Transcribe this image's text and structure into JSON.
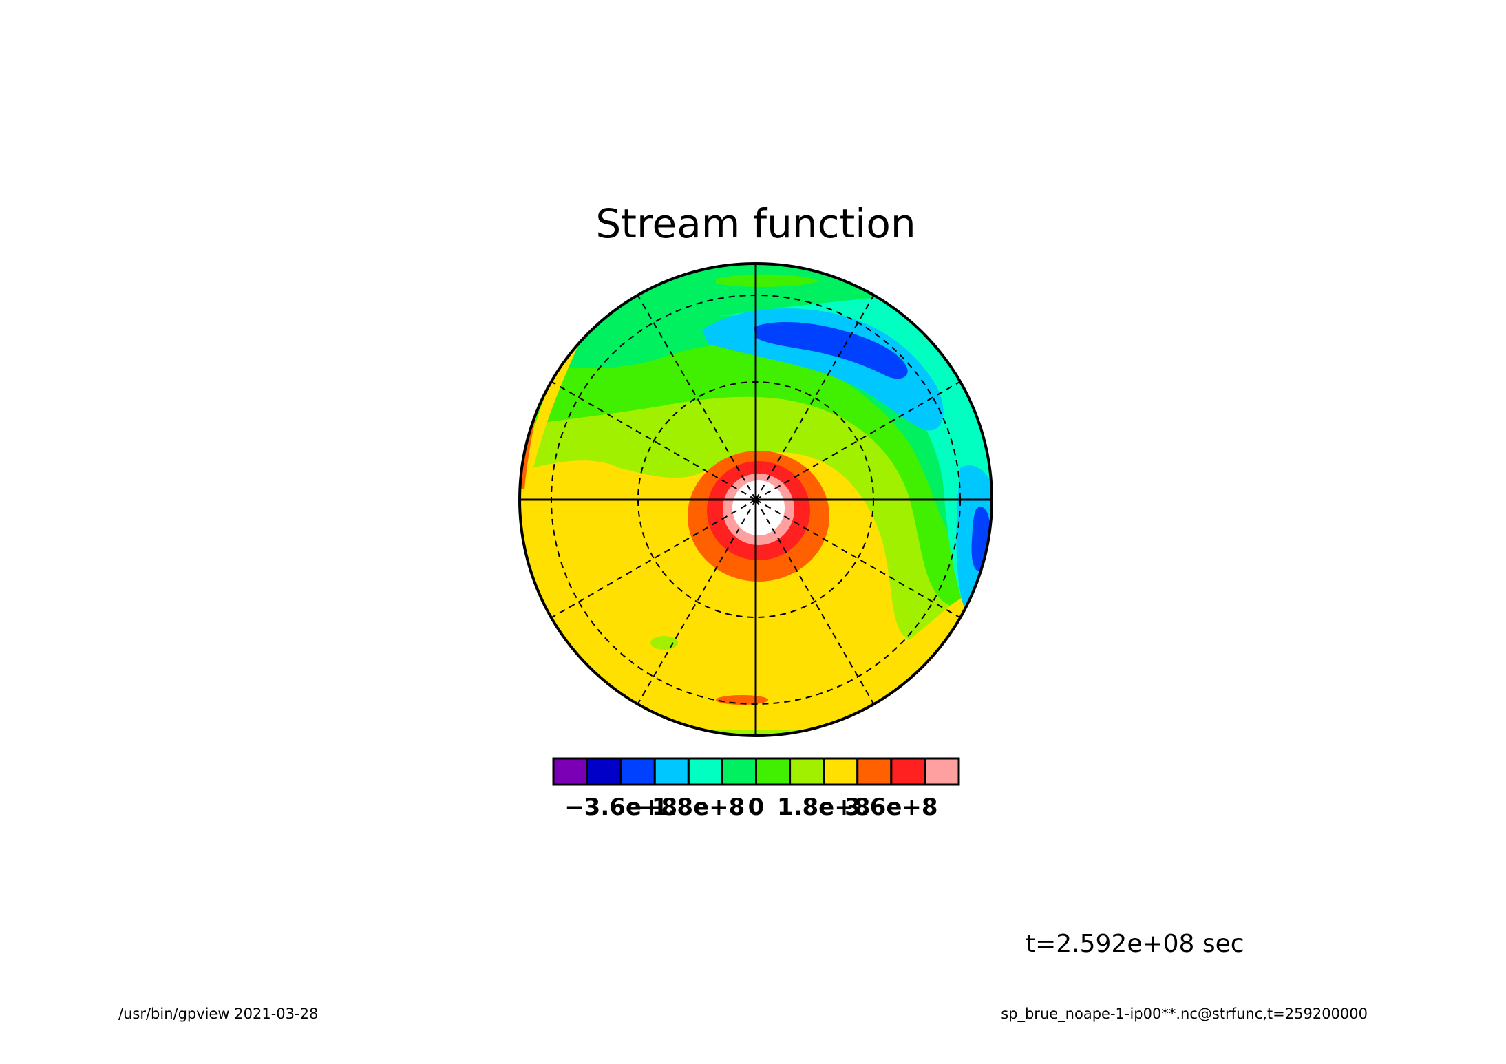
{
  "chart_data": {
    "type": "heatmap",
    "title": "Stream function",
    "projection": "polar orthographic",
    "colorbar": {
      "colors": [
        "#7b00b5",
        "#0000c8",
        "#0040ff",
        "#00c8ff",
        "#00ffc0",
        "#00f060",
        "#40f000",
        "#a0f000",
        "#ffe000",
        "#ff6000",
        "#ff2020",
        "#ffa0a0"
      ],
      "tick_labels": [
        "-3.6e+8",
        "-1.8e+8",
        "0",
        "1.8e+8",
        "3.6e+8"
      ],
      "tick_values": [
        -360000000,
        -180000000,
        0,
        180000000,
        360000000
      ],
      "range": [
        -540000000,
        540000000
      ],
      "interval": 90000000
    },
    "grid": {
      "latitude_circles": "dashed",
      "meridians": "dashed every 30 degrees",
      "axes": "solid cross through pole"
    },
    "annotations": {
      "time": "t=2.592e+08 sec"
    }
  },
  "footer": {
    "left": "/usr/bin/gpview  2021-03-28",
    "right": "sp_brue_noape-1-ip00**.nc@strfunc,t=259200000"
  }
}
